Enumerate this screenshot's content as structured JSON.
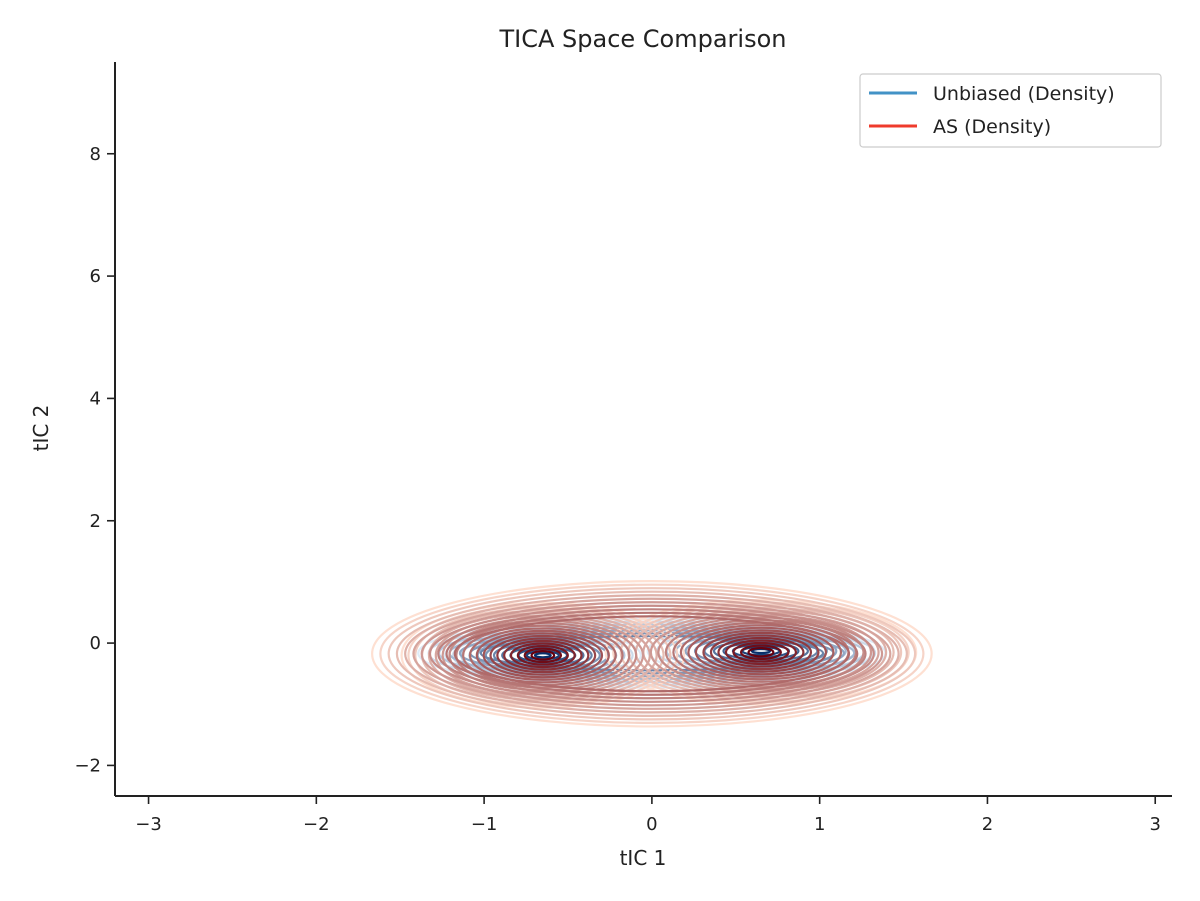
{
  "chart_data": {
    "type": "contour",
    "title": "TICA Space Comparison",
    "xlabel": "tIC 1",
    "ylabel": "tIC 2",
    "xlim": [
      -3.2,
      3.1
    ],
    "ylim": [
      -2.5,
      9.5
    ],
    "xticks": [
      -3,
      -2,
      -1,
      0,
      1,
      2,
      3
    ],
    "xtick_labels": [
      "−3",
      "−2",
      "−1",
      "0",
      "1",
      "2",
      "3"
    ],
    "yticks": [
      -2,
      0,
      2,
      4,
      6,
      8
    ],
    "ytick_labels": [
      "−2",
      "0",
      "2",
      "4",
      "6",
      "8"
    ],
    "grid": false,
    "legend_position": "top-right",
    "series": [
      {
        "name": "Unbiased (Density)",
        "legend_color": "#4292c6",
        "color_light": "#deebf7",
        "color_dark": "#08306b",
        "modes": [
          {
            "x": -0.65,
            "y": -0.2,
            "weight": 0.7
          },
          {
            "x": 0.65,
            "y": -0.13,
            "weight": 1.0
          }
        ],
        "levels": 12,
        "x_spread": 1.35,
        "y_spread": 0.45
      },
      {
        "name": "AS (Density)",
        "legend_color": "#ef3b2c",
        "color_light": "#fee0d2",
        "color_dark": "#67000d",
        "modes": [
          {
            "x": -0.65,
            "y": -0.2,
            "weight": 0.8
          },
          {
            "x": 0.65,
            "y": -0.15,
            "weight": 1.0
          }
        ],
        "levels": 20,
        "x_spread": 1.85,
        "y_spread": 0.95
      }
    ]
  }
}
